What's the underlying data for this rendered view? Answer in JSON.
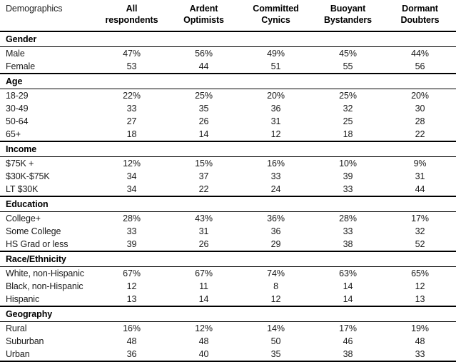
{
  "colors": {
    "background": "#ffffff",
    "text": "#1a1a1a",
    "rule": "#000000"
  },
  "chart_data": {
    "type": "table",
    "corner_label": "Demographics",
    "columns": [
      "All respondents",
      "Ardent Optimists",
      "Committed Cynics",
      "Buoyant Bystanders",
      "Dormant Doubters"
    ],
    "sections": [
      {
        "title": "Gender",
        "rows": [
          {
            "label": "Male",
            "values": [
              "47%",
              "56%",
              "49%",
              "45%",
              "44%"
            ]
          },
          {
            "label": "Female",
            "values": [
              "53",
              "44",
              "51",
              "55",
              "56"
            ]
          }
        ]
      },
      {
        "title": "Age",
        "rows": [
          {
            "label": "18-29",
            "values": [
              "22%",
              "25%",
              "20%",
              "25%",
              "20%"
            ]
          },
          {
            "label": "30-49",
            "values": [
              "33",
              "35",
              "36",
              "32",
              "30"
            ]
          },
          {
            "label": "50-64",
            "values": [
              "27",
              "26",
              "31",
              "25",
              "28"
            ]
          },
          {
            "label": "65+",
            "values": [
              "18",
              "14",
              "12",
              "18",
              "22"
            ]
          }
        ]
      },
      {
        "title": "Income",
        "rows": [
          {
            "label": "$75K +",
            "values": [
              "12%",
              "15%",
              "16%",
              "10%",
              "9%"
            ]
          },
          {
            "label": "$30K-$75K",
            "values": [
              "34",
              "37",
              "33",
              "39",
              "31"
            ]
          },
          {
            "label": "LT $30K",
            "values": [
              "34",
              "22",
              "24",
              "33",
              "44"
            ]
          }
        ]
      },
      {
        "title": "Education",
        "rows": [
          {
            "label": "College+",
            "values": [
              "28%",
              "43%",
              "36%",
              "28%",
              "17%"
            ]
          },
          {
            "label": "Some College",
            "values": [
              "33",
              "31",
              "36",
              "33",
              "32"
            ]
          },
          {
            "label": "HS Grad or less",
            "values": [
              "39",
              "26",
              "29",
              "38",
              "52"
            ]
          }
        ]
      },
      {
        "title": "Race/Ethnicity",
        "rows": [
          {
            "label": "White, non-Hispanic",
            "values": [
              "67%",
              "67%",
              "74%",
              "63%",
              "65%"
            ]
          },
          {
            "label": "Black, non-Hispanic",
            "values": [
              "12",
              "11",
              "8",
              "14",
              "12"
            ]
          },
          {
            "label": "Hispanic",
            "values": [
              "13",
              "14",
              "12",
              "14",
              "13"
            ]
          }
        ]
      },
      {
        "title": "Geography",
        "rows": [
          {
            "label": "Rural",
            "values": [
              "16%",
              "12%",
              "14%",
              "17%",
              "19%"
            ]
          },
          {
            "label": "Suburban",
            "values": [
              "48",
              "48",
              "50",
              "46",
              "48"
            ]
          },
          {
            "label": "Urban",
            "values": [
              "36",
              "40",
              "35",
              "38",
              "33"
            ]
          }
        ]
      }
    ]
  }
}
